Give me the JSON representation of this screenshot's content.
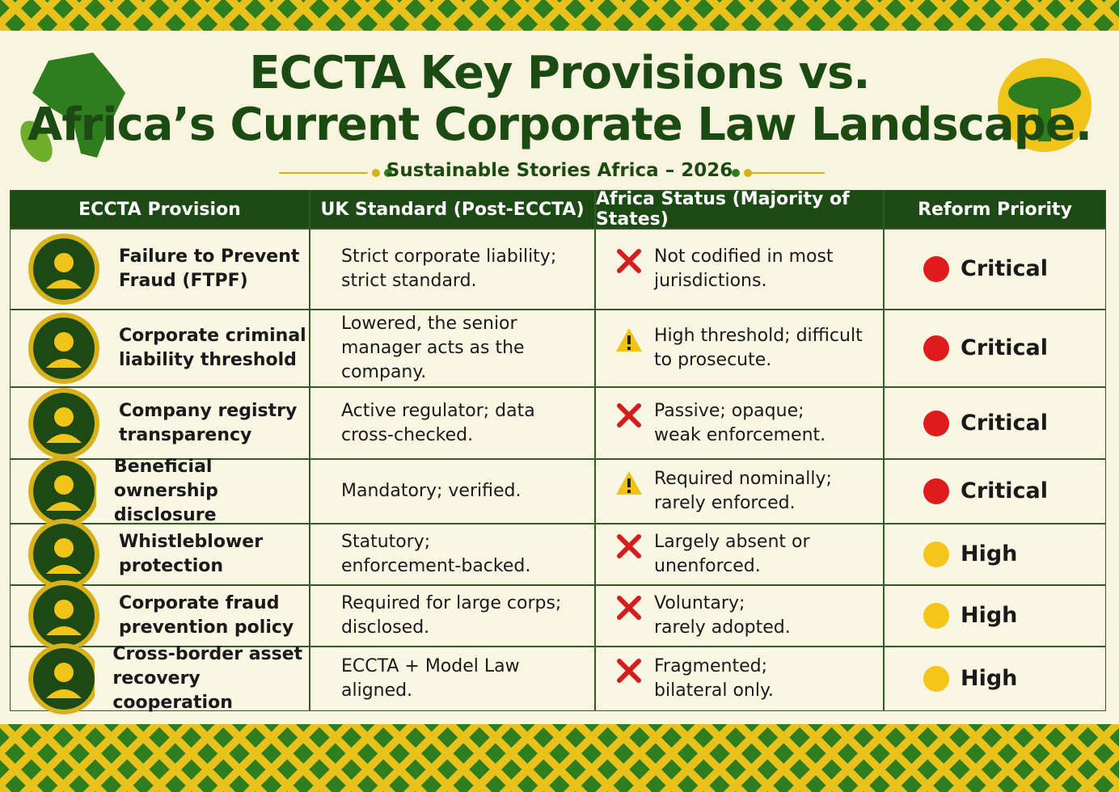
{
  "header": {
    "title": [
      "ECCTA Key Provisions vs.",
      "Africa’s Current Corporate Law Landscape."
    ],
    "subtitle": "Sustainable Stories Africa – 2026"
  },
  "table": {
    "columns": [
      "ECCTA Provision",
      "UK Standard (Post-ECCTA)",
      "Africa Status (Majority of States)",
      "Reform Priority"
    ],
    "rows": [
      {
        "provision": [
          "Failure to Prevent",
          "Fraud (FTPF)"
        ],
        "uk": [
          "Strict corporate liability;",
          "strict standard."
        ],
        "africa": [
          "Not codified in most",
          "jurisdictions."
        ],
        "africa_icon": "cross",
        "priority": "Critical",
        "priority_color": "#e01b1b"
      },
      {
        "provision": [
          "Corporate criminal",
          "liability threshold"
        ],
        "uk": [
          "Lowered, the senior",
          "manager acts as the company."
        ],
        "africa": [
          "High threshold; difficult",
          "to prosecute."
        ],
        "africa_icon": "warning",
        "priority": "Critical",
        "priority_color": "#e01b1b"
      },
      {
        "provision": [
          "Company registry",
          "transparency"
        ],
        "uk": [
          "Active regulator; data",
          "cross-checked."
        ],
        "africa": [
          "Passive; opaque;",
          "weak enforcement."
        ],
        "africa_icon": "cross",
        "priority": "Critical",
        "priority_color": "#e01b1b"
      },
      {
        "provision": [
          "Beneficial ownership",
          "disclosure"
        ],
        "uk": [
          "Mandatory; verified."
        ],
        "africa": [
          "Required nominally;",
          "rarely enforced."
        ],
        "africa_icon": "warning",
        "priority": "Critical",
        "priority_color": "#e01b1b"
      },
      {
        "provision": [
          "Whistleblower",
          "protection"
        ],
        "uk": [
          "Statutory;",
          "enforcement-backed."
        ],
        "africa": [
          "Largely absent or",
          "unenforced."
        ],
        "africa_icon": "cross",
        "priority": "High",
        "priority_color": "#f5c518"
      },
      {
        "provision": [
          "Corporate fraud",
          "prevention policy"
        ],
        "uk": [
          "Required for large corps;",
          "disclosed."
        ],
        "africa": [
          "Voluntary;",
          "rarely adopted."
        ],
        "africa_icon": "cross",
        "priority": "High",
        "priority_color": "#f5c518"
      },
      {
        "provision": [
          "Cross-border asset",
          "recovery cooperation"
        ],
        "uk": [
          "ECCTA + Model Law",
          "aligned."
        ],
        "africa": [
          "Fragmented;",
          "bilateral only."
        ],
        "africa_icon": "cross",
        "priority": "High",
        "priority_color": "#f5c518"
      }
    ]
  }
}
